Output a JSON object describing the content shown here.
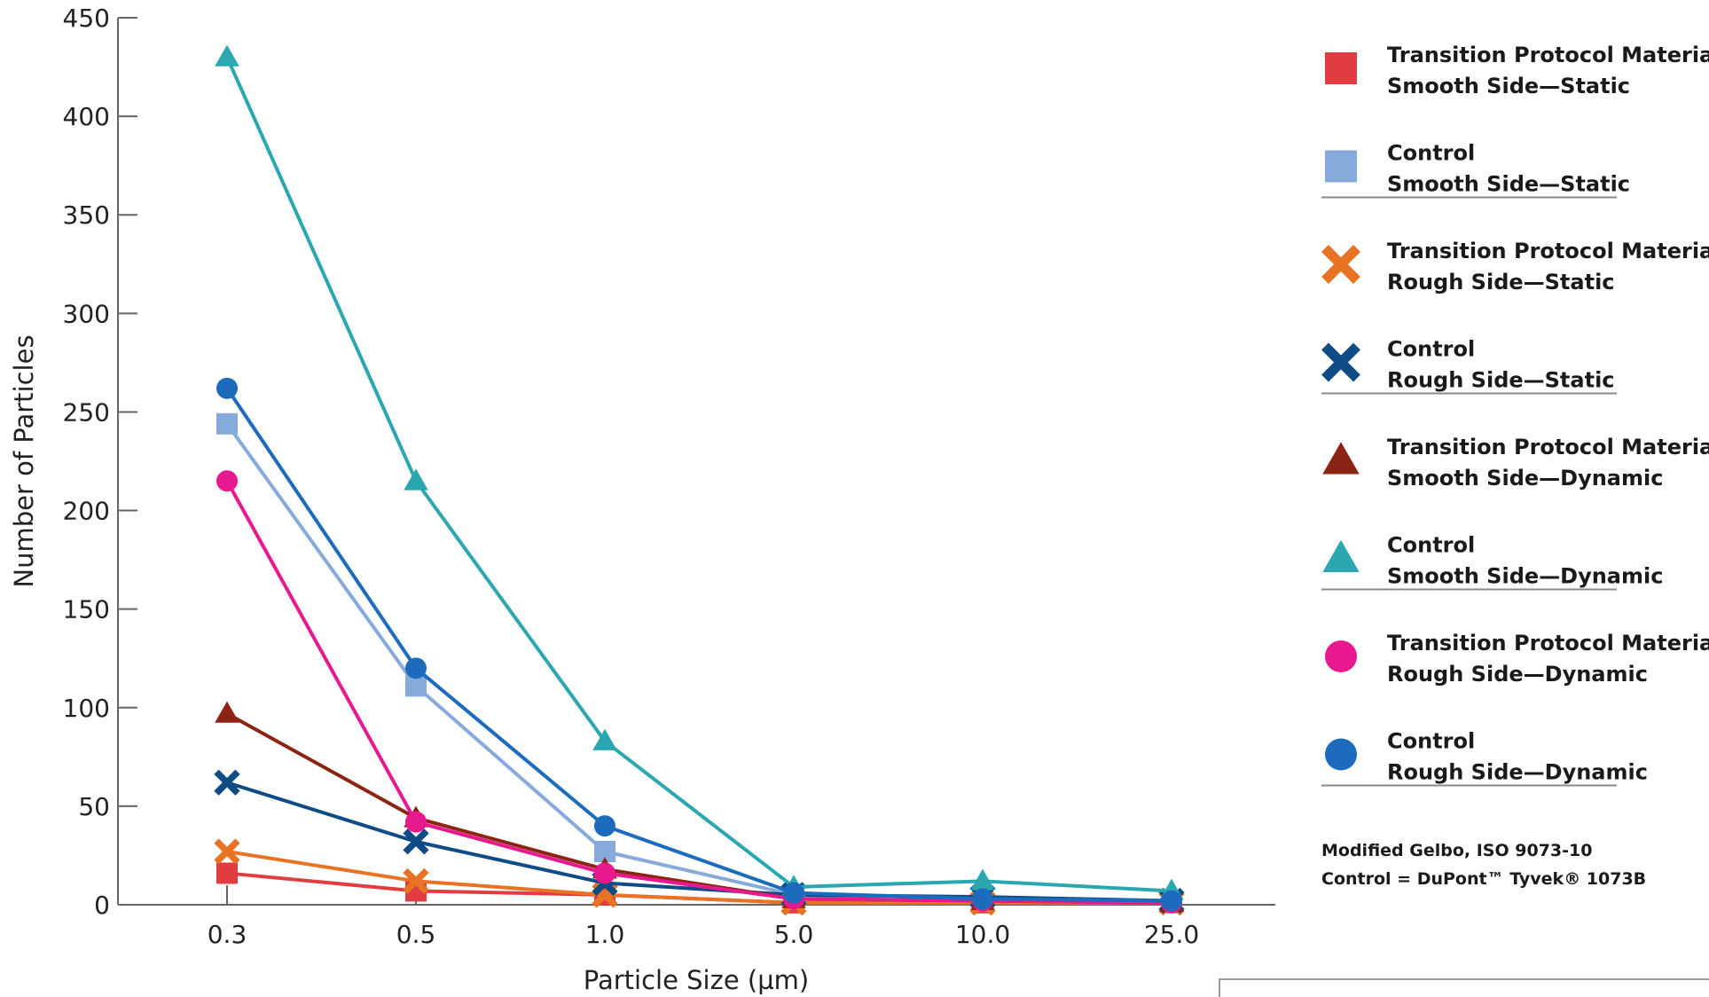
{
  "chart_data": {
    "type": "line",
    "title": "",
    "xlabel": "Particle Size (µm)",
    "ylabel": "Number of Particles",
    "categories": [
      "0.3",
      "0.5",
      "1.0",
      "5.0",
      "10.0",
      "25.0"
    ],
    "ylim": [
      0,
      450
    ],
    "yticks": [
      "0",
      "50",
      "100",
      "150",
      "200",
      "250",
      "300",
      "350",
      "400",
      "450"
    ],
    "grid": false,
    "legend_position": "right",
    "series": [
      {
        "name": "Transition Protocol Material Smooth Side—Static",
        "legend_lines": [
          "Transition Protocol Material",
          "Smooth Side—Static"
        ],
        "marker": "square",
        "color": "#e03c41",
        "values": [
          16,
          7,
          5,
          1,
          1,
          1
        ]
      },
      {
        "name": "Control Smooth Side—Static",
        "legend_lines": [
          "Control",
          "Smooth Side—Static"
        ],
        "marker": "square",
        "color": "#86aadb",
        "values": [
          244,
          111,
          27,
          5,
          2,
          1
        ]
      },
      {
        "name": "Transition Protocol Material Rough Side—Static",
        "legend_lines": [
          "Transition Protocol Material",
          "Rough Side—Static"
        ],
        "marker": "x",
        "color": "#e97325",
        "values": [
          27,
          12,
          5,
          1,
          1,
          1
        ]
      },
      {
        "name": "Control Rough Side—Static",
        "legend_lines": [
          "Control",
          "Rough Side—Static"
        ],
        "marker": "x",
        "color": "#0f4b85",
        "values": [
          62,
          32,
          11,
          5,
          4,
          2
        ]
      },
      {
        "name": "Transition Protocol Material Smooth Side—Dynamic",
        "legend_lines": [
          "Transition Protocol Material",
          "Smooth Side—Dynamic"
        ],
        "marker": "triangle",
        "color": "#8b2412",
        "values": [
          97,
          44,
          18,
          3,
          2,
          1
        ]
      },
      {
        "name": "Control Smooth Side—Dynamic",
        "legend_lines": [
          "Control",
          "Smooth Side—Dynamic"
        ],
        "marker": "triangle",
        "color": "#2aa7b0",
        "values": [
          430,
          215,
          83,
          9,
          12,
          7
        ]
      },
      {
        "name": "Transition Protocol Material Rough Side—Dynamic",
        "legend_lines": [
          "Transition Protocol Material",
          "Rough Side—Dynamic"
        ],
        "marker": "circle",
        "color": "#e8188e",
        "values": [
          215,
          42,
          16,
          3,
          2,
          1
        ]
      },
      {
        "name": "Control Rough Side—Dynamic",
        "legend_lines": [
          "Control",
          "Rough Side—Dynamic"
        ],
        "marker": "circle",
        "color": "#1d6bbc",
        "values": [
          262,
          120,
          40,
          6,
          3,
          2
        ]
      }
    ],
    "notes": [
      "Modified Gelbo, ISO 9073-10",
      "Control = DuPont™ Tyvek® 1073B"
    ]
  }
}
